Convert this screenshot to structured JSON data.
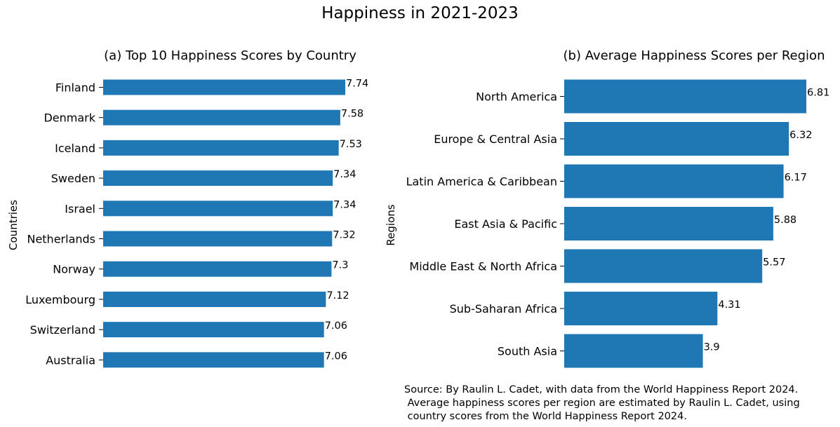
{
  "figure_title": "Happiness in 2021-2023",
  "source_note": "Source: By Raulin L. Cadet, with data from the World Happiness Report 2024.\n Average happiness scores per region are estimated by Raulin L. Cadet, using\n country scores from the World Happiness Report 2024.",
  "chart_data": [
    {
      "type": "bar",
      "orientation": "horizontal",
      "title": "(a) Top 10 Happiness Scores by Country",
      "xlabel": "",
      "ylabel": "Countries",
      "categories": [
        "Finland",
        "Denmark",
        "Iceland",
        "Sweden",
        "Israel",
        "Netherlands",
        "Norway",
        "Luxembourg",
        "Switzerland",
        "Australia"
      ],
      "values": [
        7.74,
        7.58,
        7.53,
        7.34,
        7.34,
        7.32,
        7.3,
        7.12,
        7.06,
        7.06
      ],
      "data_labels": [
        "7.74",
        "7.58",
        "7.53",
        "7.34",
        "7.34",
        "7.32",
        "7.3",
        "7.12",
        "7.06",
        "7.06"
      ],
      "xlim": [
        0,
        7.74
      ],
      "grid": false,
      "color": "#1f77b4"
    },
    {
      "type": "bar",
      "orientation": "horizontal",
      "title": "(b) Average Happiness Scores per Region",
      "xlabel": "",
      "ylabel": "Regions",
      "categories": [
        "North America",
        "Europe & Central Asia",
        "Latin America & Caribbean",
        "East Asia & Pacific",
        "Middle East & North Africa",
        "Sub-Saharan Africa",
        "South Asia"
      ],
      "values": [
        6.81,
        6.32,
        6.17,
        5.88,
        5.57,
        4.31,
        3.9
      ],
      "data_labels": [
        "6.81",
        "6.32",
        "6.17",
        "5.88",
        "5.57",
        "4.31",
        "3.9"
      ],
      "xlim": [
        0,
        6.81
      ],
      "grid": false,
      "color": "#1f77b4"
    }
  ]
}
